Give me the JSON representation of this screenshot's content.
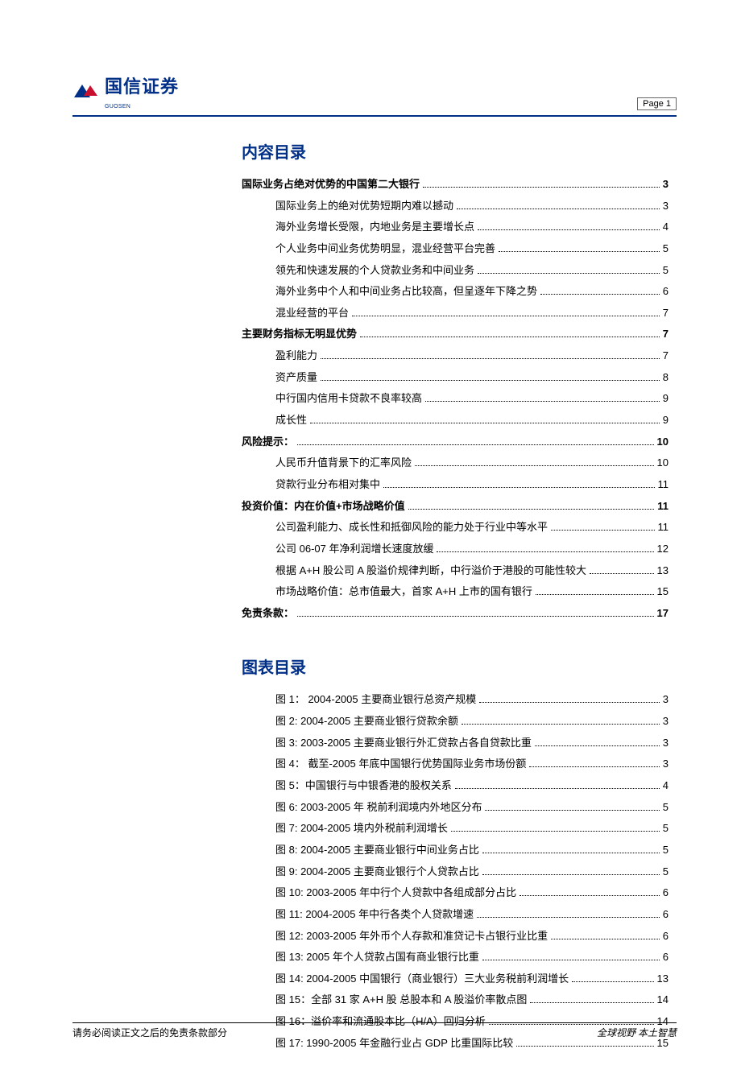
{
  "colors": {
    "brand_blue": "#002f87",
    "brand_red": "#c8102e",
    "text": "#000000",
    "background": "#ffffff",
    "border_gray": "#666666"
  },
  "typography": {
    "body_family": "SimSun",
    "heading_family": "SimHei",
    "body_size_pt": 10,
    "heading_size_pt": 15,
    "line_height": 2.05
  },
  "header": {
    "logo_text": "国信证券",
    "logo_sub": "GUOSEN",
    "page_label": "Page   1"
  },
  "sections": {
    "toc_title": "内容目录",
    "figures_title": "图表目录"
  },
  "toc": [
    {
      "level": 1,
      "label": "国际业务占绝对优势的中国第二大银行",
      "page": "3"
    },
    {
      "level": 2,
      "label": "国际业务上的绝对优势短期内难以撼动",
      "page": "3"
    },
    {
      "level": 2,
      "label": "海外业务增长受限，内地业务是主要增长点",
      "page": "4"
    },
    {
      "level": 2,
      "label": "个人业务中间业务优势明显，混业经营平台完善",
      "page": "5"
    },
    {
      "level": 2,
      "label": "领先和快速发展的个人贷款业务和中间业务",
      "page": "5"
    },
    {
      "level": 2,
      "label": "海外业务中个人和中间业务占比较高，但呈逐年下降之势",
      "page": "6"
    },
    {
      "level": 2,
      "label": "混业经营的平台",
      "page": "7"
    },
    {
      "level": 1,
      "label": "主要财务指标无明显优势",
      "page": "7"
    },
    {
      "level": 2,
      "label": "盈利能力",
      "page": "7"
    },
    {
      "level": 2,
      "label": "资产质量",
      "page": "8"
    },
    {
      "level": 2,
      "label": "中行国内信用卡贷款不良率较高",
      "page": "9"
    },
    {
      "level": 2,
      "label": "成长性",
      "page": "9"
    },
    {
      "level": 1,
      "label": "风险提示：",
      "page": "10"
    },
    {
      "level": 2,
      "label": "人民币升值背景下的汇率风险",
      "page": "10"
    },
    {
      "level": 2,
      "label": "贷款行业分布相对集中",
      "page": "11"
    },
    {
      "level": 1,
      "label": "投资价值：内在价值+市场战略价值",
      "page": "11"
    },
    {
      "level": 2,
      "label": "公司盈利能力、成长性和抵御风险的能力处于行业中等水平",
      "page": "11"
    },
    {
      "level": 2,
      "label": "公司 06-07 年净利润增长速度放缓",
      "page": "12"
    },
    {
      "level": 2,
      "label": "根据 A+H 股公司 A 股溢价规律判断，中行溢价于港股的可能性较大",
      "page": "13"
    },
    {
      "level": 2,
      "label": "市场战略价值：总市值最大，首家 A+H 上市的国有银行",
      "page": "15"
    },
    {
      "level": 1,
      "label": "免责条款：",
      "page": "17"
    }
  ],
  "figures": [
    {
      "label": "图 1：  2004-2005 主要商业银行总资产规模",
      "page": "3"
    },
    {
      "label": "图 2: 2004-2005 主要商业银行贷款余额",
      "page": "3"
    },
    {
      "label": "图 3: 2003-2005  主要商业银行外汇贷款占各自贷款比重",
      "page": "3"
    },
    {
      "label": "图 4：  截至-2005 年底中国银行优势国际业务市场份额",
      "page": "3"
    },
    {
      "label": "图 5：中国银行与中银香港的股权关系",
      "page": "4"
    },
    {
      "label": "图 6: 2003-2005 年  税前利润境内外地区分布",
      "page": "5"
    },
    {
      "label": "图 7: 2004-2005 境内外税前利润增长",
      "page": "5"
    },
    {
      "label": "图 8: 2004-2005 主要商业银行中间业务占比",
      "page": "5"
    },
    {
      "label": "图 9: 2004-2005 主要商业银行个人贷款占比",
      "page": "5"
    },
    {
      "label": "图 10: 2003-2005 年中行个人贷款中各组成部分占比",
      "page": "6"
    },
    {
      "label": "图 11: 2004-2005 年中行各类个人贷款增速",
      "page": "6"
    },
    {
      "label": "图 12: 2003-2005 年外币个人存款和准贷记卡占银行业比重",
      "page": "6"
    },
    {
      "label": "图 13: 2005 年个人贷款占国有商业银行比重",
      "page": "6"
    },
    {
      "label": "图 14: 2004-2005 中国银行（商业银行）三大业务税前利润增长",
      "page": "13"
    },
    {
      "label": "图 15：全部 31 家 A+H 股  总股本和 A 股溢价率散点图",
      "page": "14"
    },
    {
      "label": "图 16：溢价率和流通股本比（H/A）回归分析",
      "page": "14"
    },
    {
      "label": "图 17: 1990-2005 年金融行业占 GDP 比重国际比较",
      "page": "15"
    }
  ],
  "footer": {
    "left": "请务必阅读正文之后的免责条款部分",
    "right": "全球视野  本土智慧"
  }
}
